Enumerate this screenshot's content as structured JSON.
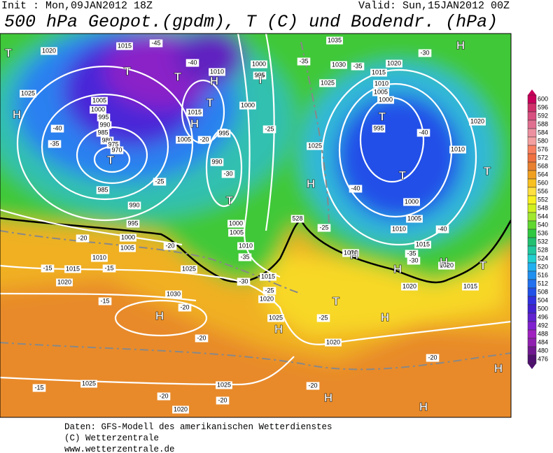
{
  "header": {
    "init": "Init : Mon,09JAN2012 18Z",
    "valid": "Valid: Sun,15JAN2012 00Z",
    "title": "500 hPa Geopot.(gpdm), T (C) und Bodendr. (hPa)"
  },
  "legend": {
    "values": [
      "600",
      "596",
      "592",
      "588",
      "584",
      "580",
      "576",
      "572",
      "568",
      "564",
      "560",
      "556",
      "552",
      "548",
      "544",
      "540",
      "536",
      "532",
      "528",
      "524",
      "520",
      "516",
      "512",
      "508",
      "504",
      "500",
      "496",
      "492",
      "488",
      "484",
      "480",
      "476"
    ],
    "colors": [
      "#c8005a",
      "#d0306a",
      "#d85080",
      "#e07090",
      "#ec90a0",
      "#f4a0a0",
      "#f88060",
      "#f07040",
      "#e88030",
      "#f0a020",
      "#f8c020",
      "#ffe040",
      "#f8f020",
      "#d0f020",
      "#a0e830",
      "#60d830",
      "#30c840",
      "#20c070",
      "#20c8a0",
      "#20d0d0",
      "#20b0f0",
      "#2090f0",
      "#2070f0",
      "#2050e8",
      "#3030e0",
      "#4020d0",
      "#6020d0",
      "#8020d0",
      "#a020c0",
      "#9020b0",
      "#701890",
      "#501070"
    ]
  },
  "map": {
    "isobar_labels": [
      "1020",
      "1015",
      "-45",
      "-40",
      "1010",
      "1000",
      "995",
      "-35",
      "1035",
      "1030",
      "-35",
      "1020",
      "1015",
      "1025",
      "-30",
      "1010",
      "1005",
      "1000",
      "995",
      "-40",
      "1010",
      "1020",
      "1025",
      "1005",
      "1000",
      "995",
      "990",
      "985",
      "980",
      "975",
      "970",
      "-35",
      "-40",
      "-25",
      "985",
      "990",
      "995",
      "1015",
      "1005",
      "-20",
      "995",
      "990",
      "-30",
      "1000",
      "1005",
      "1010",
      "-35",
      "1000",
      "1005",
      "1010",
      "-20",
      "-15",
      "1015",
      "-15",
      "1020",
      "1025",
      "-30",
      "1015",
      "-25",
      "1020",
      "1025",
      "1030",
      "-20",
      "-15",
      "-20",
      "1020",
      "-25",
      "1025",
      "1025",
      "-20",
      "-15",
      "-20",
      "1020",
      "-20",
      "-20",
      "1010",
      "1015",
      "1020",
      "1015",
      "1020",
      "-35",
      "-30",
      "-40",
      "1005",
      "1000",
      "-40",
      "1025",
      "-25",
      "1000",
      "-25",
      "1020",
      "528",
      "-20"
    ],
    "centers": [
      "T",
      "H",
      "T",
      "T",
      "H",
      "T",
      "H",
      "T",
      "T",
      "T",
      "T",
      "T",
      "H",
      "T",
      "H",
      "H",
      "H",
      "T",
      "H",
      "H",
      "H",
      "H",
      "T",
      "H",
      "H",
      "H"
    ]
  },
  "footer": {
    "lines": [
      "Daten: GFS-Modell des amerikanischen Wetterdienstes",
      "(C) Wetterzentrale",
      "www.wetterzentrale.de"
    ]
  }
}
